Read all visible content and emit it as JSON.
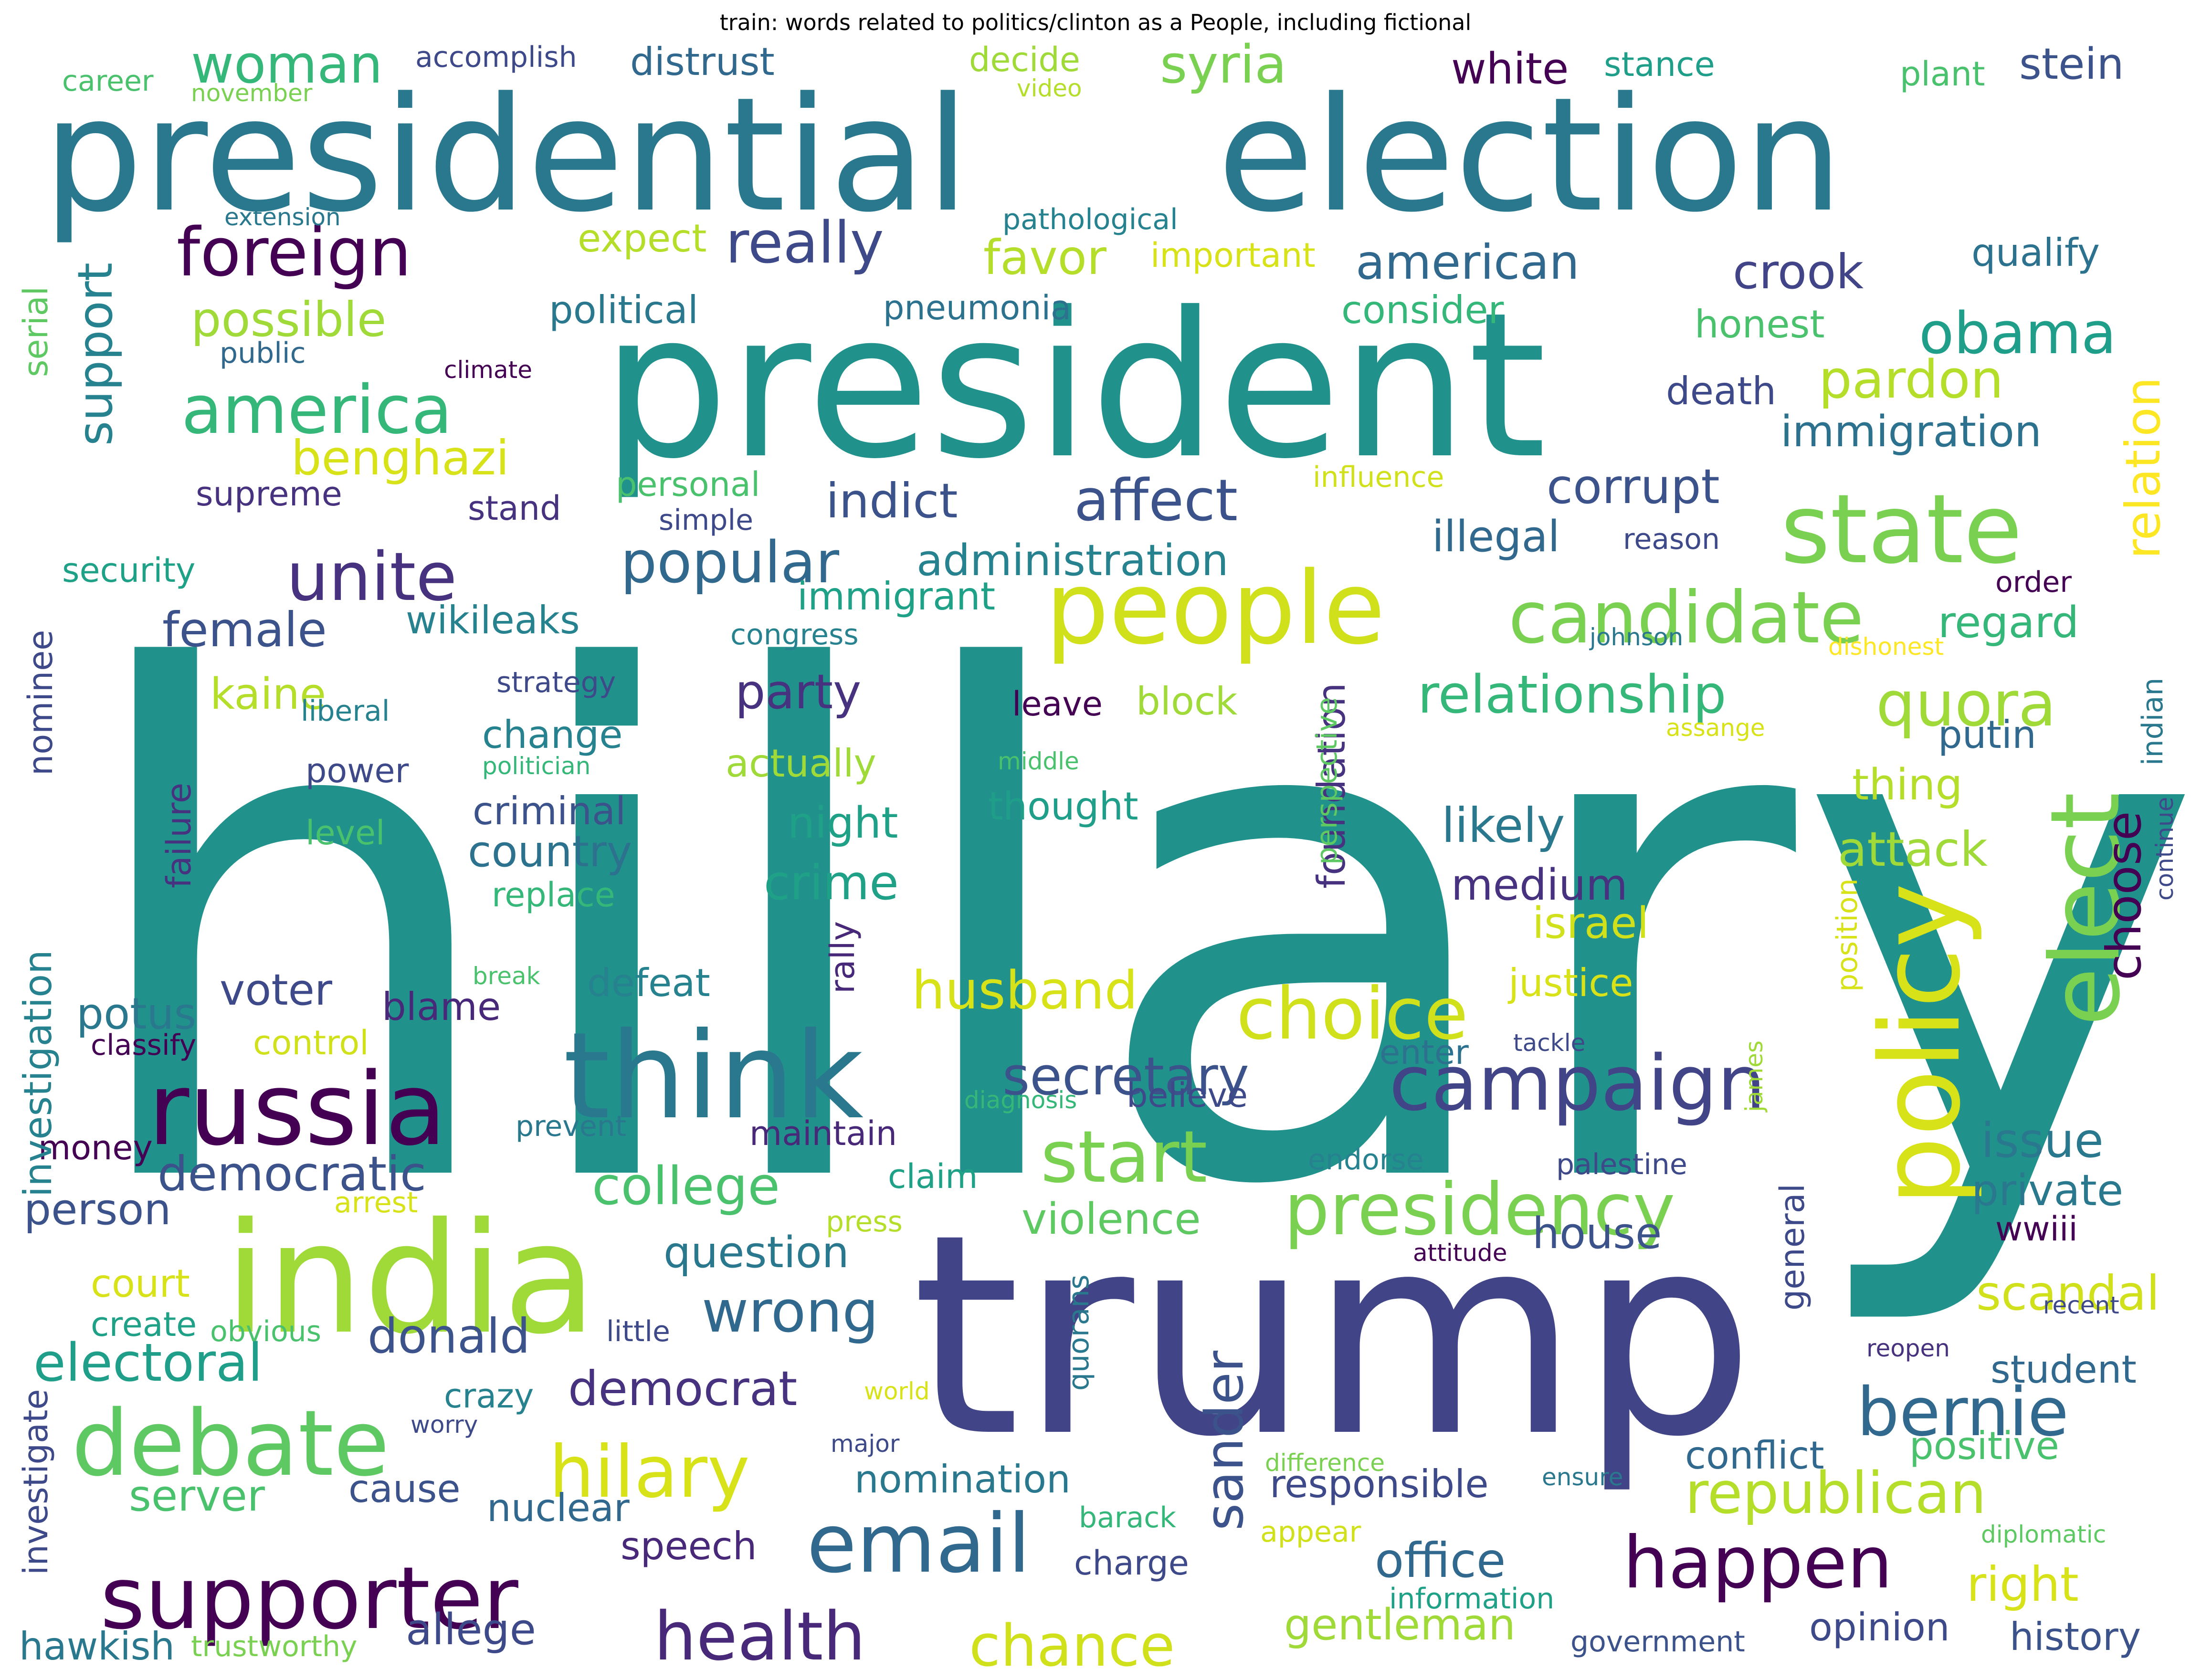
{
  "title": "train: words related to politics/clinton as a People, including fictional",
  "palette": [
    "#440154",
    "#46327e",
    "#365c8d",
    "#277f8e",
    "#1fa187",
    "#4ac16d",
    "#a0da39",
    "#d8e219"
  ],
  "words": [
    {
      "text": "hillary",
      "color": "#21918c"
    },
    {
      "text": "trump",
      "color": "#414487"
    },
    {
      "text": "president",
      "color": "#21918c"
    },
    {
      "text": "presidential",
      "color": "#2a788e"
    },
    {
      "text": "election",
      "color": "#2a788e"
    },
    {
      "text": "india",
      "color": "#a0da39"
    },
    {
      "text": "people",
      "color": "#d0e11c"
    },
    {
      "text": "think",
      "color": "#2a788e"
    },
    {
      "text": "russia",
      "color": "#440154"
    },
    {
      "text": "policy",
      "color": "#d8e219"
    },
    {
      "text": "state",
      "color": "#7ad151"
    },
    {
      "text": "elect",
      "color": "#7ad151"
    },
    {
      "text": "debate",
      "color": "#5ec962"
    },
    {
      "text": "supporter",
      "color": "#440154"
    },
    {
      "text": "email",
      "color": "#31688e"
    },
    {
      "text": "campaign",
      "color": "#414487"
    },
    {
      "text": "presidency",
      "color": "#7ad151"
    },
    {
      "text": "candidate",
      "color": "#7ad151"
    },
    {
      "text": "foreign",
      "color": "#440154"
    },
    {
      "text": "america",
      "color": "#35b779"
    },
    {
      "text": "unite",
      "color": "#46327e"
    },
    {
      "text": "popular",
      "color": "#31688e"
    },
    {
      "text": "choice",
      "color": "#d0e11c"
    },
    {
      "text": "start",
      "color": "#7ad151"
    },
    {
      "text": "hilary",
      "color": "#d8e219"
    },
    {
      "text": "happen",
      "color": "#440154"
    },
    {
      "text": "bernie",
      "color": "#31688e"
    },
    {
      "text": "health",
      "color": "#482878"
    },
    {
      "text": "chance",
      "color": "#d0e11c"
    },
    {
      "text": "secretary",
      "color": "#3b528b"
    },
    {
      "text": "republican",
      "color": "#b5de2b"
    },
    {
      "text": "quora",
      "color": "#a0da39"
    },
    {
      "text": "sander",
      "color": "#3b528b"
    },
    {
      "text": "relationship",
      "color": "#35b779"
    },
    {
      "text": "husband",
      "color": "#d8e219"
    },
    {
      "text": "college",
      "color": "#4ac16d"
    },
    {
      "text": "wrong",
      "color": "#31688e"
    },
    {
      "text": "electoral",
      "color": "#1f9e89"
    },
    {
      "text": "affect",
      "color": "#3b528b"
    },
    {
      "text": "obama",
      "color": "#1f9e89"
    },
    {
      "text": "support",
      "color": "#26828e"
    },
    {
      "text": "pardon",
      "color": "#b5de2b"
    },
    {
      "text": "benghazi",
      "color": "#d8e219"
    },
    {
      "text": "really",
      "color": "#3e4989"
    },
    {
      "text": "woman",
      "color": "#35b779"
    },
    {
      "text": "syria",
      "color": "#7ad151"
    },
    {
      "text": "american",
      "color": "#31688e"
    },
    {
      "text": "office",
      "color": "#31688e"
    },
    {
      "text": "corrupt",
      "color": "#3b528b"
    },
    {
      "text": "crime",
      "color": "#1fa187"
    },
    {
      "text": "democrat",
      "color": "#46327e"
    },
    {
      "text": "donald",
      "color": "#3b528b"
    },
    {
      "text": "party",
      "color": "#46327e"
    },
    {
      "text": "democratic",
      "color": "#3b528b"
    },
    {
      "text": "indict",
      "color": "#3b528b"
    },
    {
      "text": "person",
      "color": "#3b528b"
    },
    {
      "text": "nuclear",
      "color": "#31688e"
    },
    {
      "text": "nomination",
      "color": "#2a788e"
    },
    {
      "text": "administration",
      "color": "#26828e"
    },
    {
      "text": "crook",
      "color": "#414487"
    },
    {
      "text": "possible",
      "color": "#a0da39"
    },
    {
      "text": "immigration",
      "color": "#2c728e"
    },
    {
      "text": "favor",
      "color": "#b5de2b"
    },
    {
      "text": "female",
      "color": "#3b528b"
    },
    {
      "text": "issue",
      "color": "#2a788e"
    },
    {
      "text": "private",
      "color": "#2a788e"
    },
    {
      "text": "scandal",
      "color": "#d0e11c"
    },
    {
      "text": "responsible",
      "color": "#3e4989"
    },
    {
      "text": "gentleman",
      "color": "#a0da39"
    },
    {
      "text": "allege",
      "color": "#3e4989"
    },
    {
      "text": "question",
      "color": "#2a788e"
    },
    {
      "text": "violence",
      "color": "#5ec962"
    },
    {
      "text": "attack",
      "color": "#a0da39"
    },
    {
      "text": "likely",
      "color": "#2a788e"
    },
    {
      "text": "medium",
      "color": "#46327e"
    },
    {
      "text": "foundation",
      "color": "#46327e"
    },
    {
      "text": "choose",
      "color": "#440154"
    },
    {
      "text": "relation",
      "color": "#fde725"
    },
    {
      "text": "regard",
      "color": "#35b779"
    },
    {
      "text": "right",
      "color": "#d8e219"
    },
    {
      "text": "positive",
      "color": "#4ac16d"
    },
    {
      "text": "house",
      "color": "#3b528b"
    },
    {
      "text": "illegal",
      "color": "#31688e"
    },
    {
      "text": "potus",
      "color": "#2a788e"
    },
    {
      "text": "blame",
      "color": "#482878"
    },
    {
      "text": "voter",
      "color": "#3e4989"
    },
    {
      "text": "speech",
      "color": "#482878"
    },
    {
      "text": "cause",
      "color": "#3b528b"
    },
    {
      "text": "server",
      "color": "#4ac16d"
    },
    {
      "text": "country",
      "color": "#2c728e"
    },
    {
      "text": "criminal",
      "color": "#3b528b"
    },
    {
      "text": "change",
      "color": "#26828e"
    },
    {
      "text": "defeat",
      "color": "#26828e"
    },
    {
      "text": "kaine",
      "color": "#b5de2b"
    },
    {
      "text": "actually",
      "color": "#a0da39"
    },
    {
      "text": "night",
      "color": "#1fa187"
    },
    {
      "text": "thought",
      "color": "#1f9e89"
    },
    {
      "text": "block",
      "color": "#a0da39"
    },
    {
      "text": "israel",
      "color": "#d0e11c"
    },
    {
      "text": "justice",
      "color": "#d8e219"
    },
    {
      "text": "thing",
      "color": "#b5de2b"
    },
    {
      "text": "putin",
      "color": "#31688e"
    },
    {
      "text": "history",
      "color": "#3b528b"
    },
    {
      "text": "opinion",
      "color": "#3e4989"
    },
    {
      "text": "student",
      "color": "#31688e"
    },
    {
      "text": "conflict",
      "color": "#31688e"
    },
    {
      "text": "general",
      "color": "#3e4989"
    },
    {
      "text": "wwiii",
      "color": "#440154"
    },
    {
      "text": "court",
      "color": "#d8e219"
    },
    {
      "text": "hawkish",
      "color": "#2a788e"
    },
    {
      "text": "money",
      "color": "#440154"
    },
    {
      "text": "create",
      "color": "#1fa187"
    },
    {
      "text": "investigation",
      "color": "#26828e"
    },
    {
      "text": "investigate",
      "color": "#3e4989"
    },
    {
      "text": "nominee",
      "color": "#3e4989"
    },
    {
      "text": "white",
      "color": "#440154"
    },
    {
      "text": "stein",
      "color": "#3b528b"
    },
    {
      "text": "qualify",
      "color": "#2c728e"
    },
    {
      "text": "honest",
      "color": "#4ac16d"
    },
    {
      "text": "consider",
      "color": "#35b779"
    },
    {
      "text": "death",
      "color": "#3e4989"
    },
    {
      "text": "wikileaks",
      "color": "#26828e"
    },
    {
      "text": "immigrant",
      "color": "#1fa187"
    },
    {
      "text": "political",
      "color": "#2a788e"
    },
    {
      "text": "pneumonia",
      "color": "#2c728e"
    },
    {
      "text": "expect",
      "color": "#b5de2b"
    },
    {
      "text": "important",
      "color": "#d8e219"
    },
    {
      "text": "distrust",
      "color": "#31688e"
    },
    {
      "text": "accomplish",
      "color": "#3e4989"
    },
    {
      "text": "career",
      "color": "#4ac16d"
    },
    {
      "text": "november",
      "color": "#7ad151"
    },
    {
      "text": "decide",
      "color": "#a0da39"
    },
    {
      "text": "video",
      "color": "#b5de2b"
    },
    {
      "text": "stance",
      "color": "#1f9e89"
    },
    {
      "text": "plant",
      "color": "#4ac16d"
    },
    {
      "text": "extension",
      "color": "#2a788e"
    },
    {
      "text": "pathological",
      "color": "#26828e"
    },
    {
      "text": "serial",
      "color": "#5ec962"
    },
    {
      "text": "public",
      "color": "#31688e"
    },
    {
      "text": "climate",
      "color": "#440154"
    },
    {
      "text": "supreme",
      "color": "#46327e"
    },
    {
      "text": "stand",
      "color": "#46327e"
    },
    {
      "text": "personal",
      "color": "#4ac16d"
    },
    {
      "text": "simple",
      "color": "#3e4989"
    },
    {
      "text": "influence",
      "color": "#d0e11c"
    },
    {
      "text": "reason",
      "color": "#3e4989"
    },
    {
      "text": "order",
      "color": "#440154"
    },
    {
      "text": "security",
      "color": "#1fa187"
    },
    {
      "text": "congress",
      "color": "#26828e"
    },
    {
      "text": "johnson",
      "color": "#2a788e"
    },
    {
      "text": "dishonest",
      "color": "#fde725"
    },
    {
      "text": "strategy",
      "color": "#3e4989"
    },
    {
      "text": "liberal",
      "color": "#26828e"
    },
    {
      "text": "leave",
      "color": "#440154"
    },
    {
      "text": "assange",
      "color": "#d8e219"
    },
    {
      "text": "indian",
      "color": "#2a788e"
    },
    {
      "text": "power",
      "color": "#3e4989"
    },
    {
      "text": "politician",
      "color": "#35b779"
    },
    {
      "text": "middle",
      "color": "#4ac16d"
    },
    {
      "text": "perspective",
      "color": "#5ec962"
    },
    {
      "text": "failure",
      "color": "#46327e"
    },
    {
      "text": "level",
      "color": "#4ac16d"
    },
    {
      "text": "replace",
      "color": "#35b779"
    },
    {
      "text": "rally",
      "color": "#482878"
    },
    {
      "text": "position",
      "color": "#d8e219"
    },
    {
      "text": "continue",
      "color": "#3e4989"
    },
    {
      "text": "break",
      "color": "#4ac16d"
    },
    {
      "text": "classify",
      "color": "#440154"
    },
    {
      "text": "control",
      "color": "#d0e11c"
    },
    {
      "text": "enter",
      "color": "#2c728e"
    },
    {
      "text": "tackle",
      "color": "#3e4989"
    },
    {
      "text": "james",
      "color": "#a0da39"
    },
    {
      "text": "diagnosis",
      "color": "#35b779"
    },
    {
      "text": "believe",
      "color": "#3e4989"
    },
    {
      "text": "prevent",
      "color": "#2a788e"
    },
    {
      "text": "maintain",
      "color": "#482878"
    },
    {
      "text": "endorse",
      "color": "#26828e"
    },
    {
      "text": "palestine",
      "color": "#3e4989"
    },
    {
      "text": "arrest",
      "color": "#d8e219"
    },
    {
      "text": "claim",
      "color": "#1fa187"
    },
    {
      "text": "press",
      "color": "#b5de2b"
    },
    {
      "text": "attitude",
      "color": "#440154"
    },
    {
      "text": "quorans",
      "color": "#2a788e"
    },
    {
      "text": "obvious",
      "color": "#4ac16d"
    },
    {
      "text": "little",
      "color": "#3e4989"
    },
    {
      "text": "recent",
      "color": "#3e4989"
    },
    {
      "text": "reopen",
      "color": "#46327e"
    },
    {
      "text": "crazy",
      "color": "#26828e"
    },
    {
      "text": "worry",
      "color": "#3e4989"
    },
    {
      "text": "world",
      "color": "#d8e219"
    },
    {
      "text": "major",
      "color": "#3e4989"
    },
    {
      "text": "difference",
      "color": "#7ad151"
    },
    {
      "text": "ensure",
      "color": "#2a788e"
    },
    {
      "text": "barack",
      "color": "#35b779"
    },
    {
      "text": "appear",
      "color": "#d0e11c"
    },
    {
      "text": "diplomatic",
      "color": "#5ec962"
    },
    {
      "text": "charge",
      "color": "#3e4989"
    },
    {
      "text": "information",
      "color": "#1fa187"
    },
    {
      "text": "trustworthy",
      "color": "#7ad151"
    },
    {
      "text": "government",
      "color": "#3b528b"
    }
  ]
}
